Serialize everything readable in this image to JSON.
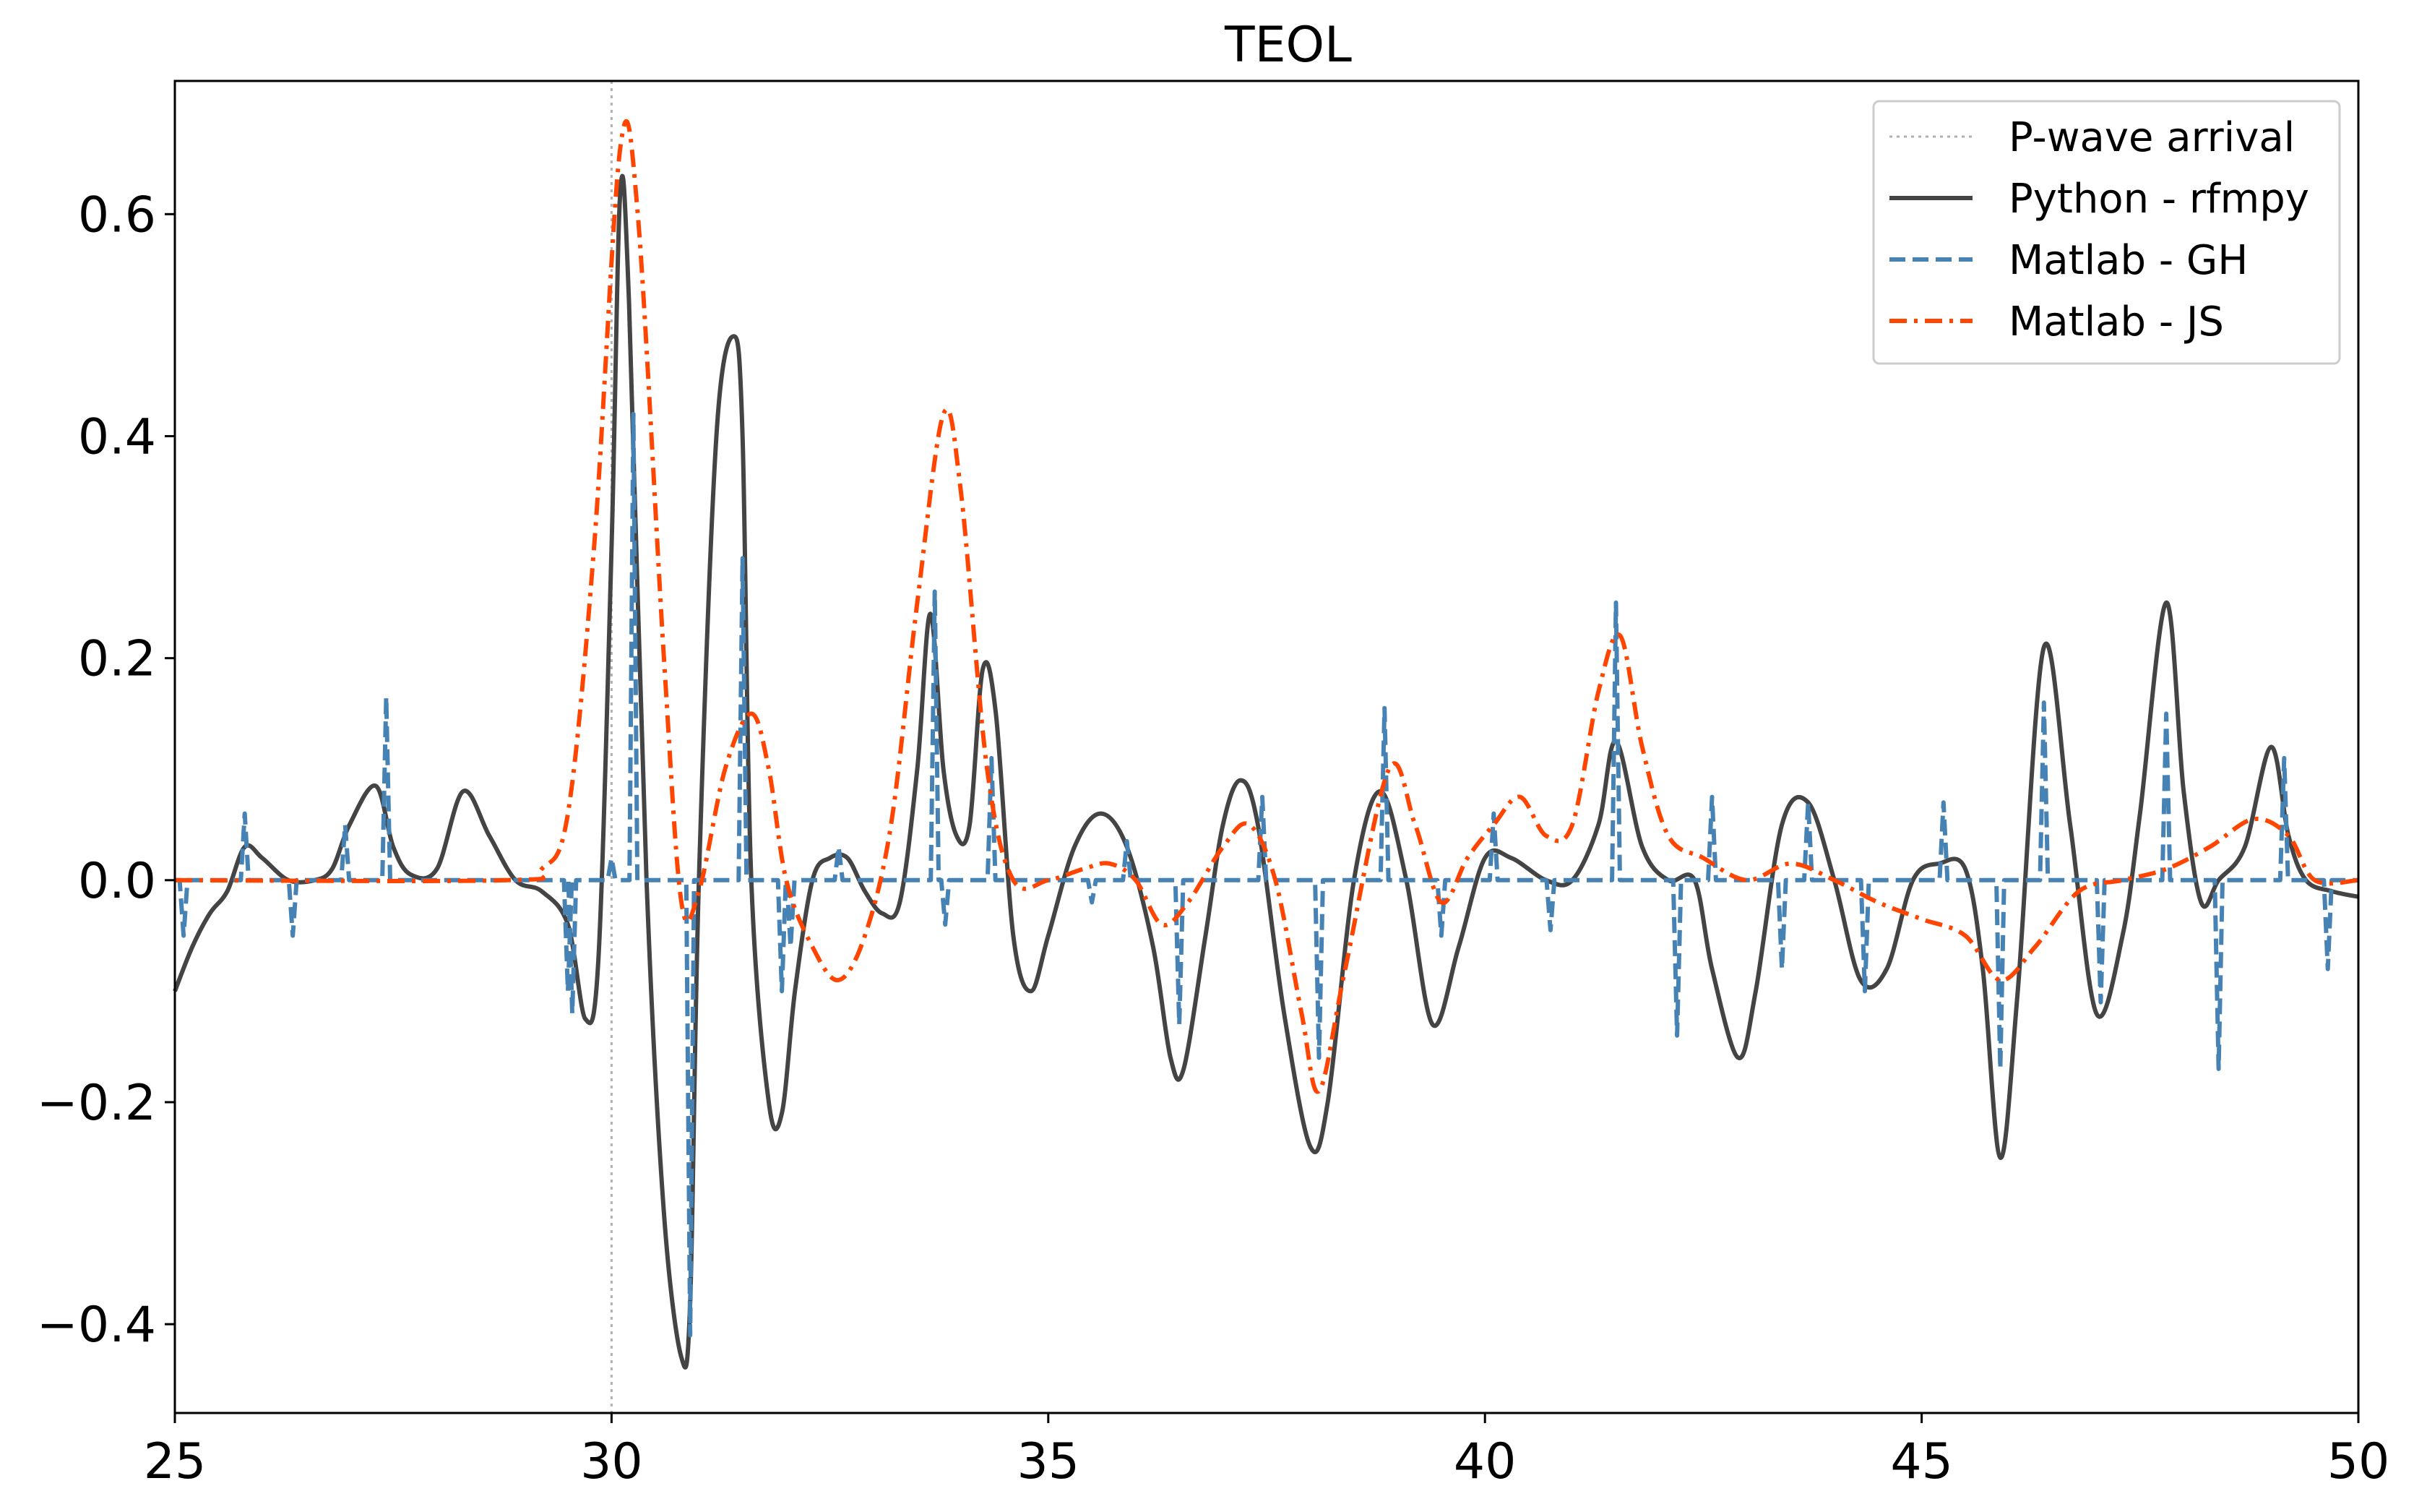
{
  "chart_data": {
    "type": "line",
    "title": "TEOL",
    "xlabel": "",
    "ylabel": "",
    "xlim": [
      25,
      50
    ],
    "ylim": [
      -0.48,
      0.72
    ],
    "grid": false,
    "legend_position": "top-right",
    "xticks": [
      25,
      30,
      35,
      40,
      45,
      50
    ],
    "xtick_labels": [
      "25",
      "30",
      "35",
      "40",
      "45",
      "50"
    ],
    "yticks": [
      -0.4,
      -0.2,
      0.0,
      0.2,
      0.4,
      0.6
    ],
    "ytick_labels": [
      "−0.4",
      "−0.2",
      "0.0",
      "0.2",
      "0.4",
      "0.6"
    ],
    "vlines": [
      {
        "name": "P-wave arrival",
        "x": 30,
        "color": "#b0b0b0",
        "style": "dotted"
      }
    ],
    "series": [
      {
        "name": "Python - rfmpy",
        "color": "#444444",
        "style": "solid",
        "x": [
          25.0,
          25.2,
          25.4,
          25.6,
          25.8,
          26.0,
          26.3,
          26.6,
          26.8,
          27.0,
          27.3,
          27.5,
          27.7,
          28.0,
          28.3,
          28.6,
          28.9,
          29.2,
          29.5,
          29.7,
          29.85,
          30.0,
          30.1,
          30.2,
          30.4,
          30.6,
          30.8,
          30.9,
          31.0,
          31.2,
          31.4,
          31.5,
          31.6,
          31.8,
          31.95,
          32.1,
          32.3,
          32.5,
          32.7,
          32.9,
          33.1,
          33.3,
          33.5,
          33.65,
          33.8,
          33.95,
          34.1,
          34.25,
          34.4,
          34.6,
          34.8,
          35.0,
          35.3,
          35.6,
          35.9,
          36.2,
          36.4,
          36.55,
          36.8,
          37.0,
          37.2,
          37.4,
          37.7,
          38.0,
          38.2,
          38.5,
          38.8,
          39.1,
          39.4,
          39.7,
          40.0,
          40.3,
          40.7,
          41.0,
          41.3,
          41.5,
          41.8,
          42.1,
          42.4,
          42.6,
          42.9,
          43.1,
          43.4,
          43.7,
          44.0,
          44.3,
          44.6,
          44.9,
          45.2,
          45.5,
          45.7,
          45.9,
          46.1,
          46.4,
          46.7,
          47.0,
          47.3,
          47.5,
          47.8,
          48.0,
          48.2,
          48.4,
          48.7,
          49.0,
          49.2,
          49.4,
          49.7,
          50.0
        ],
        "y": [
          -0.1,
          -0.06,
          -0.03,
          -0.01,
          0.03,
          0.02,
          0.0,
          0.0,
          0.01,
          0.05,
          0.085,
          0.03,
          0.005,
          0.01,
          0.08,
          0.04,
          0.0,
          -0.01,
          -0.04,
          -0.125,
          -0.07,
          0.3,
          0.62,
          0.52,
          0.0,
          -0.3,
          -0.43,
          -0.38,
          0.0,
          0.4,
          0.49,
          0.4,
          0.0,
          -0.2,
          -0.21,
          -0.1,
          0.0,
          0.02,
          0.02,
          -0.01,
          -0.03,
          -0.02,
          0.1,
          0.24,
          0.1,
          0.04,
          0.05,
          0.19,
          0.15,
          -0.05,
          -0.1,
          -0.05,
          0.03,
          0.06,
          0.03,
          -0.06,
          -0.16,
          -0.17,
          -0.05,
          0.05,
          0.09,
          0.05,
          -0.12,
          -0.24,
          -0.2,
          0.0,
          0.08,
          0.0,
          -0.13,
          -0.06,
          0.02,
          0.02,
          0.0,
          0.0,
          0.05,
          0.125,
          0.03,
          0.0,
          0.0,
          -0.08,
          -0.16,
          -0.1,
          0.05,
          0.07,
          0.0,
          -0.09,
          -0.08,
          0.0,
          0.015,
          0.01,
          -0.08,
          -0.25,
          -0.1,
          0.21,
          0.05,
          -0.12,
          -0.05,
          0.06,
          0.25,
          0.08,
          -0.02,
          0.0,
          0.03,
          0.12,
          0.04,
          0.0,
          -0.01,
          -0.015
        ]
      },
      {
        "name": "Matlab - GH",
        "color": "#4682b4",
        "style": "dashed",
        "spikes": [
          [
            25.1,
            -0.05
          ],
          [
            25.8,
            0.06
          ],
          [
            26.35,
            -0.05
          ],
          [
            26.95,
            0.05
          ],
          [
            27.42,
            0.165
          ],
          [
            29.5,
            -0.1
          ],
          [
            29.55,
            -0.12
          ],
          [
            30.0,
            0.02
          ],
          [
            30.25,
            0.42
          ],
          [
            30.9,
            -0.41
          ],
          [
            31.5,
            0.29
          ],
          [
            31.95,
            -0.1
          ],
          [
            32.05,
            -0.06
          ],
          [
            32.6,
            0.03
          ],
          [
            33.7,
            0.26
          ],
          [
            33.82,
            -0.04
          ],
          [
            34.35,
            0.11
          ],
          [
            35.5,
            -0.02
          ],
          [
            35.9,
            0.035
          ],
          [
            36.5,
            -0.13
          ],
          [
            37.45,
            0.075
          ],
          [
            38.1,
            -0.16
          ],
          [
            38.85,
            0.155
          ],
          [
            39.5,
            -0.05
          ],
          [
            40.1,
            0.06
          ],
          [
            40.75,
            -0.045
          ],
          [
            41.5,
            0.25
          ],
          [
            42.2,
            -0.14
          ],
          [
            42.6,
            0.075
          ],
          [
            43.4,
            -0.08
          ],
          [
            43.7,
            0.07
          ],
          [
            44.35,
            -0.1
          ],
          [
            45.25,
            0.07
          ],
          [
            45.9,
            -0.17
          ],
          [
            46.4,
            0.16
          ],
          [
            47.05,
            -0.11
          ],
          [
            47.8,
            0.15
          ],
          [
            48.4,
            -0.17
          ],
          [
            49.15,
            0.11
          ],
          [
            49.65,
            -0.08
          ]
        ]
      },
      {
        "name": "Matlab - JS",
        "color": "#ff4500",
        "style": "dashdot",
        "x": [
          25.0,
          28.8,
          29.2,
          29.5,
          29.8,
          30.1,
          30.3,
          30.6,
          30.8,
          31.0,
          31.3,
          31.6,
          31.8,
          32.0,
          32.3,
          32.6,
          32.9,
          33.2,
          33.5,
          33.8,
          34.0,
          34.3,
          34.6,
          35.0,
          35.4,
          35.7,
          36.0,
          36.3,
          36.6,
          37.0,
          37.3,
          37.6,
          37.9,
          38.1,
          38.4,
          38.9,
          39.2,
          39.5,
          39.8,
          40.1,
          40.4,
          40.7,
          41.0,
          41.3,
          41.55,
          41.8,
          42.1,
          42.5,
          43.0,
          43.5,
          44.0,
          44.5,
          45.0,
          45.5,
          45.9,
          46.3,
          46.8,
          47.3,
          47.8,
          48.3,
          48.8,
          49.2,
          49.5,
          50.0
        ],
        "y": [
          0.0,
          0.0,
          0.01,
          0.06,
          0.3,
          0.66,
          0.6,
          0.2,
          -0.02,
          -0.01,
          0.1,
          0.15,
          0.1,
          0.0,
          -0.06,
          -0.09,
          -0.05,
          0.05,
          0.25,
          0.42,
          0.35,
          0.1,
          0.0,
          0.0,
          0.01,
          0.015,
          0.0,
          -0.04,
          -0.02,
          0.03,
          0.05,
          0.0,
          -0.12,
          -0.19,
          -0.08,
          0.1,
          0.05,
          -0.02,
          0.02,
          0.05,
          0.075,
          0.04,
          0.05,
          0.17,
          0.22,
          0.12,
          0.04,
          0.02,
          0.0,
          0.015,
          0.0,
          -0.02,
          -0.035,
          -0.05,
          -0.09,
          -0.06,
          -0.01,
          0.0,
          0.01,
          0.03,
          0.055,
          0.04,
          0.0,
          0.0
        ]
      }
    ],
    "legend": [
      {
        "label": "P-wave arrival",
        "color": "#b0b0b0",
        "style": "dotted"
      },
      {
        "label": "Python - rfmpy",
        "color": "#444444",
        "style": "solid"
      },
      {
        "label": "Matlab - GH",
        "color": "#4682b4",
        "style": "dashed"
      },
      {
        "label": "Matlab - JS",
        "color": "#ff4500",
        "style": "dashdot"
      }
    ]
  }
}
